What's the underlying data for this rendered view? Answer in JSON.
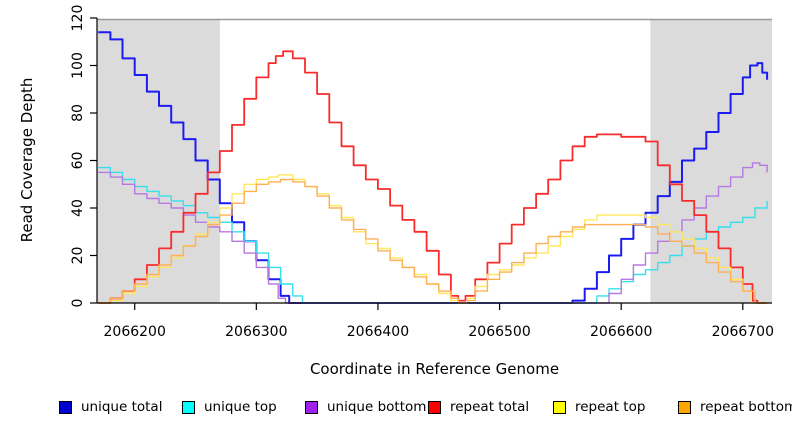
{
  "chart_data": {
    "type": "line",
    "title": "",
    "xlabel": "Coordinate in Reference Genome",
    "ylabel": "Read Coverage Depth",
    "xlim": [
      2066169,
      2066724
    ],
    "ylim": [
      0,
      120
    ],
    "x_ticks": [
      2066200,
      2066300,
      2066400,
      2066500,
      2066600,
      2066700
    ],
    "y_ticks": [
      0,
      20,
      40,
      60,
      80,
      100,
      120
    ],
    "grid": false,
    "legend_position": "bottom",
    "background_color": "#ffffff",
    "shaded_region_color": "#dbdbdb",
    "shaded_regions": [
      {
        "x0": 2066169,
        "x1": 2066270
      },
      {
        "x0": 2066624,
        "x1": 2066724
      }
    ],
    "series": [
      {
        "name": "unique total",
        "color": "#1c1cf0",
        "legend_color": "#0000cd",
        "width": 2,
        "points": [
          [
            2066170,
            114
          ],
          [
            2066180,
            111
          ],
          [
            2066190,
            103
          ],
          [
            2066200,
            96
          ],
          [
            2066210,
            89
          ],
          [
            2066220,
            83
          ],
          [
            2066230,
            76
          ],
          [
            2066240,
            69
          ],
          [
            2066250,
            60
          ],
          [
            2066260,
            52
          ],
          [
            2066270,
            42
          ],
          [
            2066280,
            34
          ],
          [
            2066290,
            26
          ],
          [
            2066300,
            18
          ],
          [
            2066310,
            10
          ],
          [
            2066320,
            3
          ],
          [
            2066327,
            0
          ],
          [
            2066550,
            0
          ],
          [
            2066560,
            1
          ],
          [
            2066570,
            6
          ],
          [
            2066580,
            13
          ],
          [
            2066590,
            20
          ],
          [
            2066600,
            27
          ],
          [
            2066610,
            33
          ],
          [
            2066620,
            38
          ],
          [
            2066630,
            45
          ],
          [
            2066640,
            51
          ],
          [
            2066650,
            60
          ],
          [
            2066660,
            65
          ],
          [
            2066670,
            72
          ],
          [
            2066680,
            80
          ],
          [
            2066690,
            88
          ],
          [
            2066700,
            95
          ],
          [
            2066706,
            100
          ],
          [
            2066712,
            101
          ],
          [
            2066716,
            97
          ],
          [
            2066720,
            94
          ]
        ]
      },
      {
        "name": "unique top",
        "color": "#35e0ec",
        "legend_color": "#00ffff",
        "width": 1.4,
        "points": [
          [
            2066170,
            57
          ],
          [
            2066180,
            55
          ],
          [
            2066190,
            52
          ],
          [
            2066200,
            49
          ],
          [
            2066210,
            47
          ],
          [
            2066220,
            45
          ],
          [
            2066230,
            43
          ],
          [
            2066240,
            41
          ],
          [
            2066250,
            38
          ],
          [
            2066260,
            36
          ],
          [
            2066270,
            34
          ],
          [
            2066280,
            30
          ],
          [
            2066290,
            26
          ],
          [
            2066300,
            21
          ],
          [
            2066310,
            15
          ],
          [
            2066320,
            8
          ],
          [
            2066330,
            3
          ],
          [
            2066338,
            0
          ],
          [
            2066570,
            0
          ],
          [
            2066580,
            3
          ],
          [
            2066590,
            6
          ],
          [
            2066600,
            9
          ],
          [
            2066610,
            12
          ],
          [
            2066620,
            14
          ],
          [
            2066630,
            17
          ],
          [
            2066640,
            20
          ],
          [
            2066650,
            24
          ],
          [
            2066660,
            27
          ],
          [
            2066670,
            30
          ],
          [
            2066680,
            32
          ],
          [
            2066690,
            34
          ],
          [
            2066700,
            36
          ],
          [
            2066710,
            40
          ],
          [
            2066720,
            43
          ]
        ]
      },
      {
        "name": "unique bottom",
        "color": "#b579e2",
        "legend_color": "#a020f0",
        "width": 1.4,
        "points": [
          [
            2066170,
            55
          ],
          [
            2066180,
            53
          ],
          [
            2066190,
            50
          ],
          [
            2066200,
            46
          ],
          [
            2066210,
            44
          ],
          [
            2066220,
            42
          ],
          [
            2066230,
            40
          ],
          [
            2066240,
            37
          ],
          [
            2066250,
            34
          ],
          [
            2066260,
            32
          ],
          [
            2066270,
            30
          ],
          [
            2066280,
            26
          ],
          [
            2066290,
            21
          ],
          [
            2066300,
            15
          ],
          [
            2066310,
            8
          ],
          [
            2066318,
            2
          ],
          [
            2066324,
            0
          ],
          [
            2066580,
            0
          ],
          [
            2066590,
            4
          ],
          [
            2066600,
            10
          ],
          [
            2066610,
            16
          ],
          [
            2066620,
            21
          ],
          [
            2066630,
            26
          ],
          [
            2066640,
            30
          ],
          [
            2066650,
            35
          ],
          [
            2066660,
            40
          ],
          [
            2066670,
            45
          ],
          [
            2066680,
            49
          ],
          [
            2066690,
            53
          ],
          [
            2066700,
            57
          ],
          [
            2066708,
            59
          ],
          [
            2066714,
            58
          ],
          [
            2066720,
            55
          ]
        ]
      },
      {
        "name": "repeat total",
        "color": "#f92c2c",
        "legend_color": "#ff0000",
        "width": 1.8,
        "points": [
          [
            2066170,
            0
          ],
          [
            2066180,
            2
          ],
          [
            2066190,
            5
          ],
          [
            2066200,
            10
          ],
          [
            2066210,
            16
          ],
          [
            2066220,
            23
          ],
          [
            2066230,
            30
          ],
          [
            2066240,
            38
          ],
          [
            2066250,
            46
          ],
          [
            2066260,
            55
          ],
          [
            2066270,
            64
          ],
          [
            2066280,
            75
          ],
          [
            2066290,
            86
          ],
          [
            2066300,
            95
          ],
          [
            2066310,
            101
          ],
          [
            2066316,
            104
          ],
          [
            2066322,
            106
          ],
          [
            2066330,
            103
          ],
          [
            2066340,
            97
          ],
          [
            2066350,
            88
          ],
          [
            2066360,
            76
          ],
          [
            2066370,
            66
          ],
          [
            2066380,
            58
          ],
          [
            2066390,
            52
          ],
          [
            2066400,
            48
          ],
          [
            2066410,
            41
          ],
          [
            2066420,
            35
          ],
          [
            2066430,
            30
          ],
          [
            2066440,
            22
          ],
          [
            2066450,
            12
          ],
          [
            2066460,
            3
          ],
          [
            2066466,
            1
          ],
          [
            2066472,
            3
          ],
          [
            2066480,
            10
          ],
          [
            2066490,
            17
          ],
          [
            2066500,
            25
          ],
          [
            2066510,
            33
          ],
          [
            2066520,
            40
          ],
          [
            2066530,
            46
          ],
          [
            2066540,
            52
          ],
          [
            2066550,
            60
          ],
          [
            2066560,
            66
          ],
          [
            2066570,
            70
          ],
          [
            2066580,
            71
          ],
          [
            2066590,
            71
          ],
          [
            2066600,
            70
          ],
          [
            2066610,
            70
          ],
          [
            2066620,
            68
          ],
          [
            2066630,
            58
          ],
          [
            2066640,
            50
          ],
          [
            2066650,
            43
          ],
          [
            2066660,
            37
          ],
          [
            2066670,
            30
          ],
          [
            2066680,
            23
          ],
          [
            2066690,
            15
          ],
          [
            2066700,
            8
          ],
          [
            2066708,
            1
          ],
          [
            2066712,
            0
          ],
          [
            2066720,
            0
          ]
        ]
      },
      {
        "name": "repeat top",
        "color": "#ffe75e",
        "legend_color": "#ffff00",
        "width": 1.4,
        "points": [
          [
            2066170,
            0
          ],
          [
            2066180,
            1
          ],
          [
            2066190,
            4
          ],
          [
            2066200,
            7
          ],
          [
            2066210,
            11
          ],
          [
            2066220,
            15
          ],
          [
            2066230,
            19
          ],
          [
            2066240,
            24
          ],
          [
            2066250,
            29
          ],
          [
            2066260,
            34
          ],
          [
            2066270,
            40
          ],
          [
            2066280,
            46
          ],
          [
            2066290,
            50
          ],
          [
            2066300,
            52
          ],
          [
            2066310,
            53
          ],
          [
            2066318,
            54
          ],
          [
            2066330,
            52
          ],
          [
            2066340,
            49
          ],
          [
            2066350,
            46
          ],
          [
            2066360,
            41
          ],
          [
            2066370,
            36
          ],
          [
            2066380,
            30
          ],
          [
            2066390,
            25
          ],
          [
            2066400,
            23
          ],
          [
            2066410,
            19
          ],
          [
            2066420,
            15
          ],
          [
            2066430,
            12
          ],
          [
            2066440,
            8
          ],
          [
            2066450,
            4
          ],
          [
            2066460,
            1
          ],
          [
            2066466,
            0
          ],
          [
            2066474,
            2
          ],
          [
            2066480,
            7
          ],
          [
            2066490,
            12
          ],
          [
            2066500,
            14
          ],
          [
            2066510,
            16
          ],
          [
            2066520,
            19
          ],
          [
            2066530,
            21
          ],
          [
            2066540,
            24
          ],
          [
            2066550,
            28
          ],
          [
            2066560,
            31
          ],
          [
            2066570,
            35
          ],
          [
            2066580,
            37
          ],
          [
            2066590,
            37
          ],
          [
            2066600,
            37
          ],
          [
            2066610,
            37
          ],
          [
            2066620,
            36
          ],
          [
            2066630,
            33
          ],
          [
            2066640,
            30
          ],
          [
            2066650,
            27
          ],
          [
            2066660,
            23
          ],
          [
            2066670,
            19
          ],
          [
            2066680,
            15
          ],
          [
            2066690,
            10
          ],
          [
            2066700,
            5
          ],
          [
            2066707,
            0
          ],
          [
            2066720,
            0
          ]
        ]
      },
      {
        "name": "repeat bottom",
        "color": "#ffb054",
        "legend_color": "#ffa500",
        "width": 1.4,
        "points": [
          [
            2066170,
            0
          ],
          [
            2066180,
            2
          ],
          [
            2066190,
            5
          ],
          [
            2066200,
            8
          ],
          [
            2066210,
            12
          ],
          [
            2066220,
            16
          ],
          [
            2066230,
            20
          ],
          [
            2066240,
            24
          ],
          [
            2066250,
            28
          ],
          [
            2066260,
            33
          ],
          [
            2066270,
            37
          ],
          [
            2066280,
            42
          ],
          [
            2066290,
            47
          ],
          [
            2066300,
            50
          ],
          [
            2066310,
            51
          ],
          [
            2066320,
            52
          ],
          [
            2066330,
            51
          ],
          [
            2066340,
            49
          ],
          [
            2066350,
            45
          ],
          [
            2066360,
            40
          ],
          [
            2066370,
            35
          ],
          [
            2066380,
            31
          ],
          [
            2066390,
            27
          ],
          [
            2066400,
            22
          ],
          [
            2066410,
            18
          ],
          [
            2066420,
            15
          ],
          [
            2066430,
            11
          ],
          [
            2066440,
            8
          ],
          [
            2066450,
            5
          ],
          [
            2066460,
            2
          ],
          [
            2066466,
            0
          ],
          [
            2066474,
            1
          ],
          [
            2066480,
            5
          ],
          [
            2066490,
            10
          ],
          [
            2066500,
            13
          ],
          [
            2066510,
            17
          ],
          [
            2066520,
            21
          ],
          [
            2066530,
            25
          ],
          [
            2066540,
            28
          ],
          [
            2066550,
            30
          ],
          [
            2066560,
            32
          ],
          [
            2066570,
            33
          ],
          [
            2066580,
            33
          ],
          [
            2066590,
            33
          ],
          [
            2066600,
            33
          ],
          [
            2066610,
            33
          ],
          [
            2066620,
            32
          ],
          [
            2066630,
            29
          ],
          [
            2066640,
            26
          ],
          [
            2066650,
            24
          ],
          [
            2066660,
            21
          ],
          [
            2066670,
            17
          ],
          [
            2066680,
            13
          ],
          [
            2066690,
            9
          ],
          [
            2066700,
            5
          ],
          [
            2066710,
            0
          ],
          [
            2066720,
            0
          ]
        ]
      }
    ]
  }
}
